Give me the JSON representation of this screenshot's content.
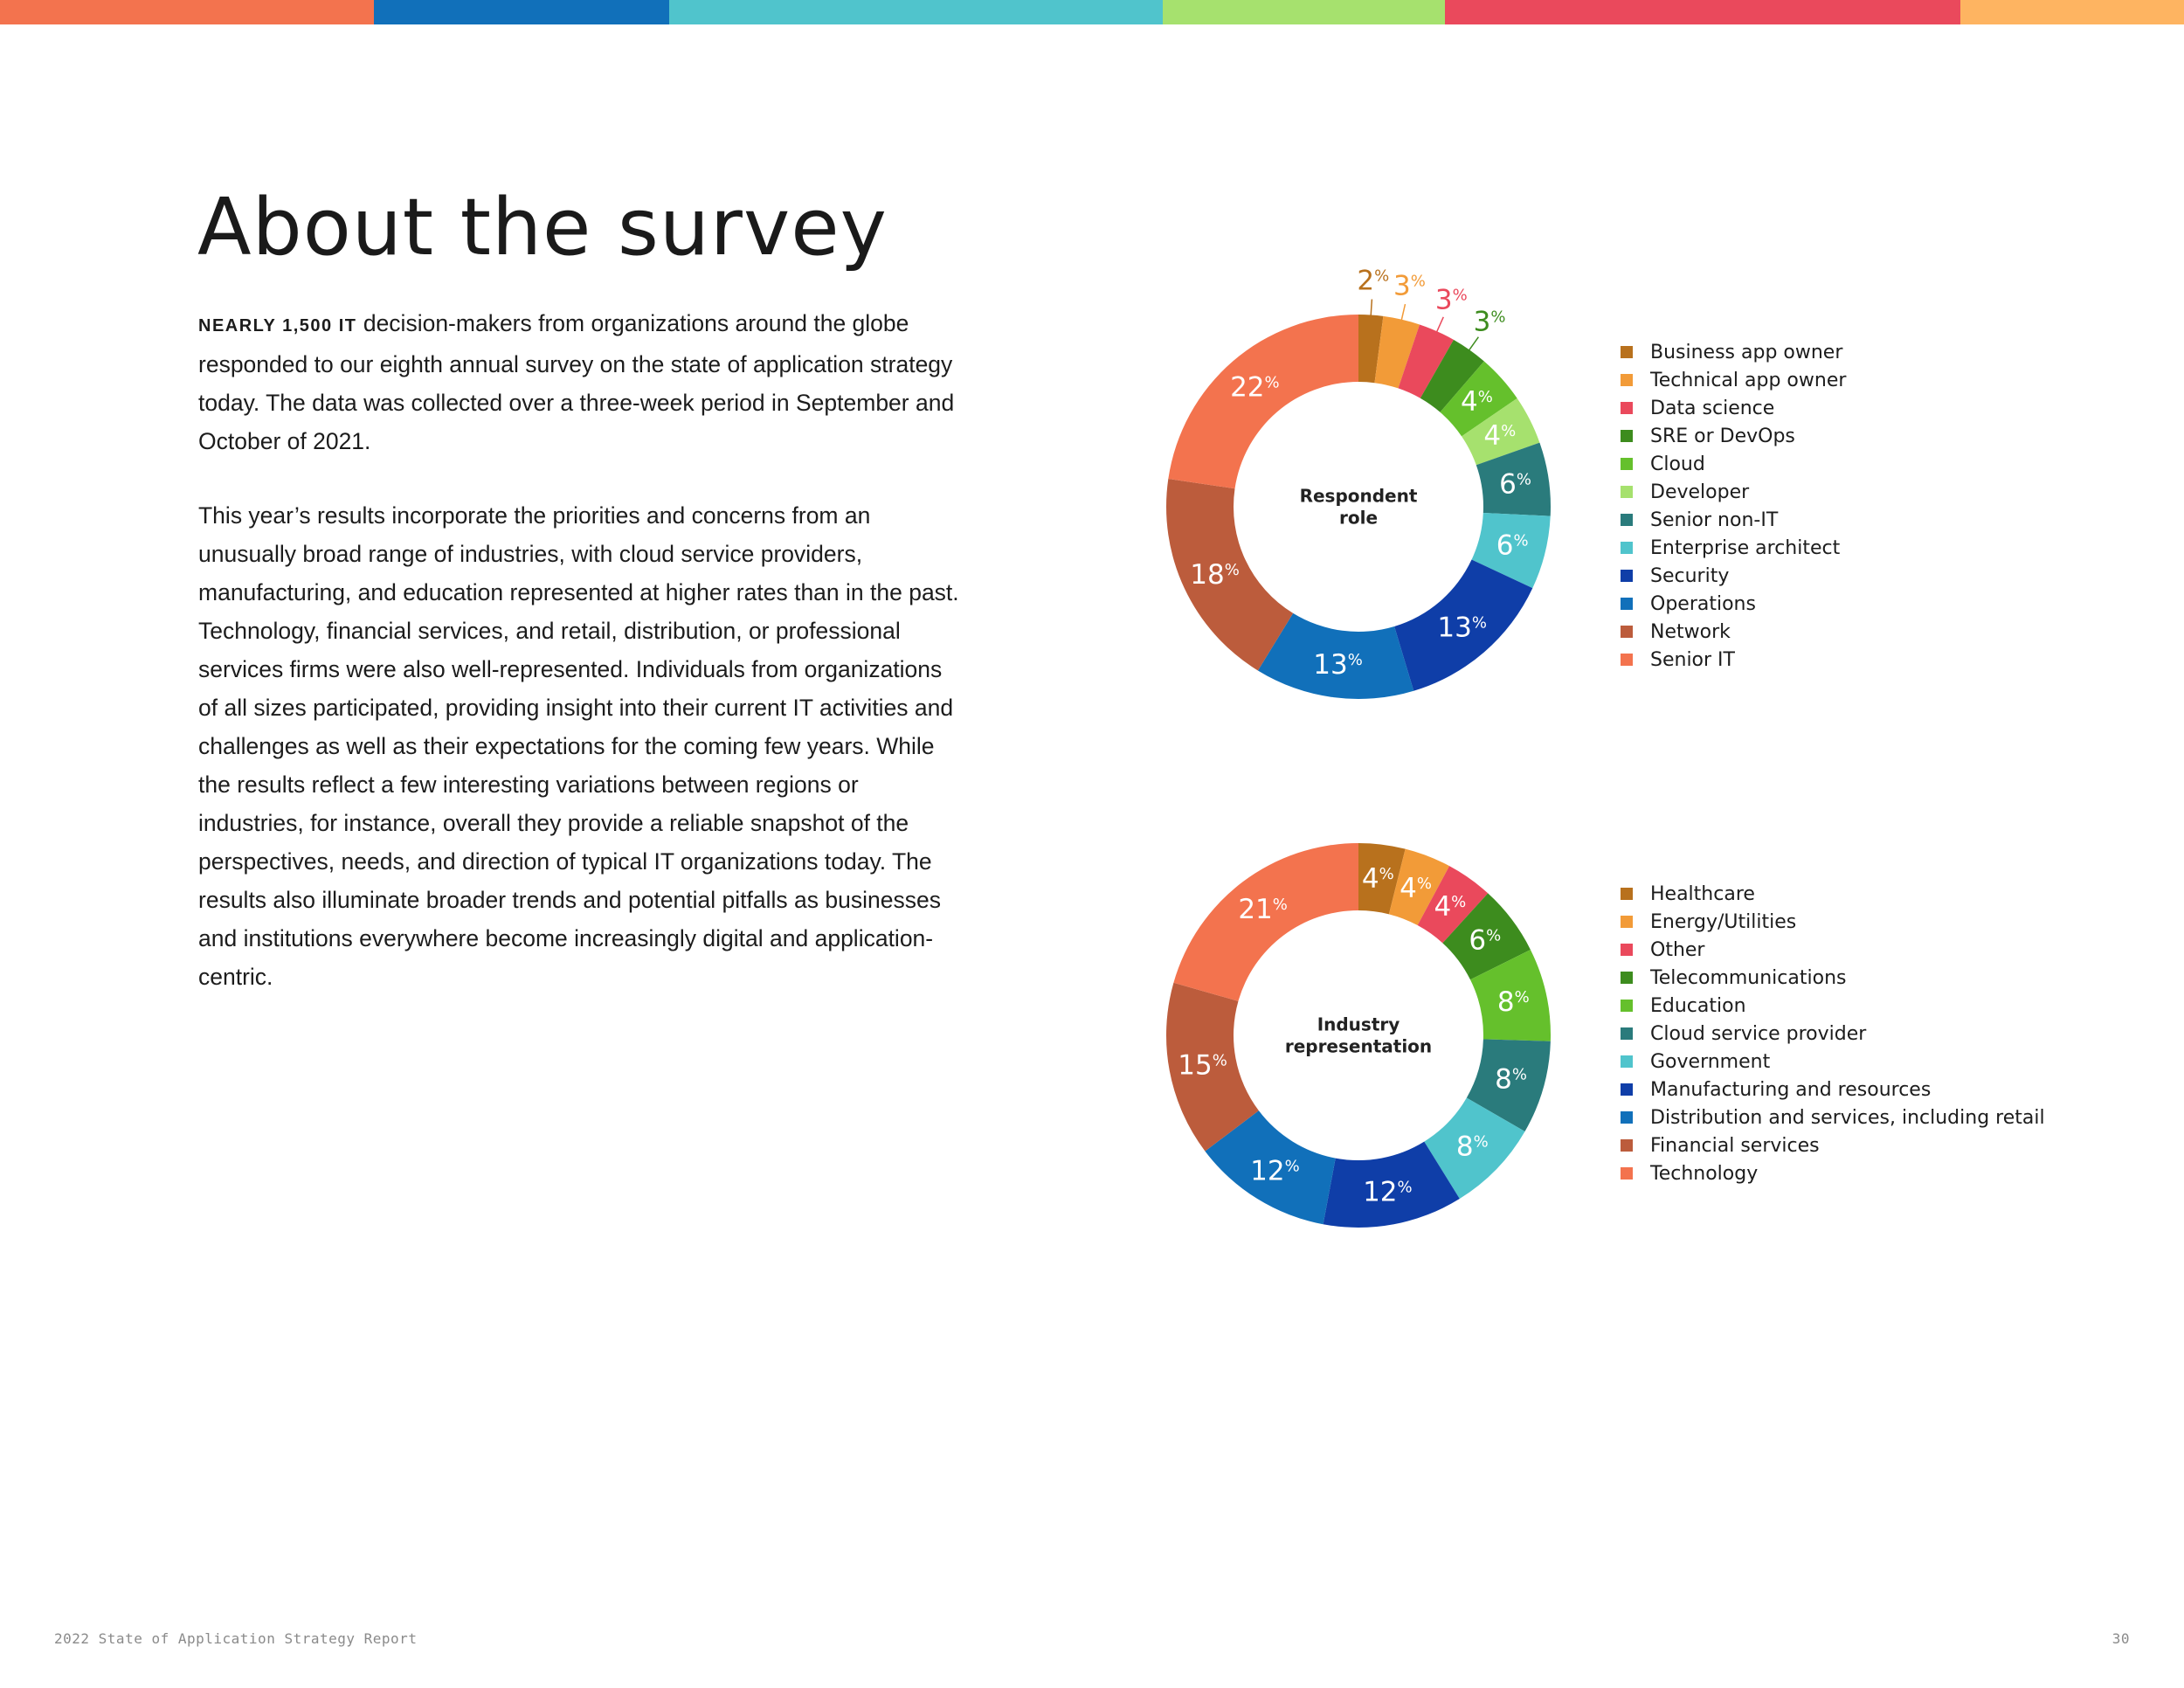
{
  "stripe_colors": [
    "#f3734e",
    "#1170ba",
    "#50c4cc",
    "#a6e16e",
    "#ea495c",
    "#feb461"
  ],
  "title": "About the survey",
  "intro": {
    "lead": "NEARLY 1,500 IT",
    "text": " decision-makers from organizations around the globe responded to our eighth annual survey on the state of application strategy today. The data was collected over a three-week period in September and October of 2021."
  },
  "body": "This year’s results incorporate the priorities and concerns from an unusually broad range of industries, with cloud service providers, manufacturing, and education represented at higher rates than in the past. Technology, financial services, and retail, distribution, or professional services firms were also well-represented. Individuals from organizations of all sizes participated, providing insight into their current IT activities and challenges as well as their expectations for the coming few years. While the results reflect a few interesting variations between regions or industries, for instance, overall they provide a reliable snapshot of the perspectives, needs, and direction of typical IT organizations today. The results also illuminate broader trends and potential pitfalls as businesses and institutions everywhere become increasingly digital and application-centric.",
  "chart_data": [
    {
      "type": "pie",
      "variant": "donut",
      "title": "Respondent role",
      "center_label": [
        "Respondent",
        "role"
      ],
      "unit": "%",
      "categories": [
        "Business app owner",
        "Technical app owner",
        "Data science",
        "SRE or DevOps",
        "Cloud",
        "Developer",
        "Senior non-IT",
        "Enterprise architect",
        "Security",
        "Operations",
        "Network",
        "Senior IT"
      ],
      "values": [
        2,
        3,
        3,
        3,
        4,
        4,
        6,
        6,
        13,
        13,
        18,
        22
      ],
      "colors": [
        "#b8711d",
        "#f29b38",
        "#ea495c",
        "#3d8c1e",
        "#65c02c",
        "#a6e16e",
        "#2a7b7c",
        "#50c4cc",
        "#0f3ea8",
        "#1170ba",
        "#bc5c3c",
        "#f3734e"
      ],
      "label_outside": [
        true,
        true,
        true,
        true,
        false,
        false,
        false,
        false,
        false,
        false,
        false,
        false
      ],
      "legend_position": "right"
    },
    {
      "type": "pie",
      "variant": "donut",
      "title": "Industry representation",
      "center_label": [
        "Industry",
        "representation"
      ],
      "unit": "%",
      "categories": [
        "Healthcare",
        "Energy/Utilities",
        "Other",
        "Telecommunications",
        "Education",
        "Cloud service provider",
        "Government",
        "Manufacturing and resources",
        "Distribution and services, including retail",
        "Financial services",
        "Technology"
      ],
      "values": [
        4,
        4,
        4,
        6,
        8,
        8,
        8,
        12,
        12,
        15,
        21
      ],
      "colors": [
        "#b8711d",
        "#f29b38",
        "#ea495c",
        "#3d8c1e",
        "#65c02c",
        "#2a7b7c",
        "#50c4cc",
        "#0f3ea8",
        "#1170ba",
        "#bc5c3c",
        "#f3734e"
      ],
      "label_outside": [
        false,
        false,
        false,
        false,
        false,
        false,
        false,
        false,
        false,
        false,
        false
      ],
      "legend_position": "right"
    }
  ],
  "footer": {
    "report_title": "2022 State of Application Strategy Report",
    "page_number": "30"
  }
}
